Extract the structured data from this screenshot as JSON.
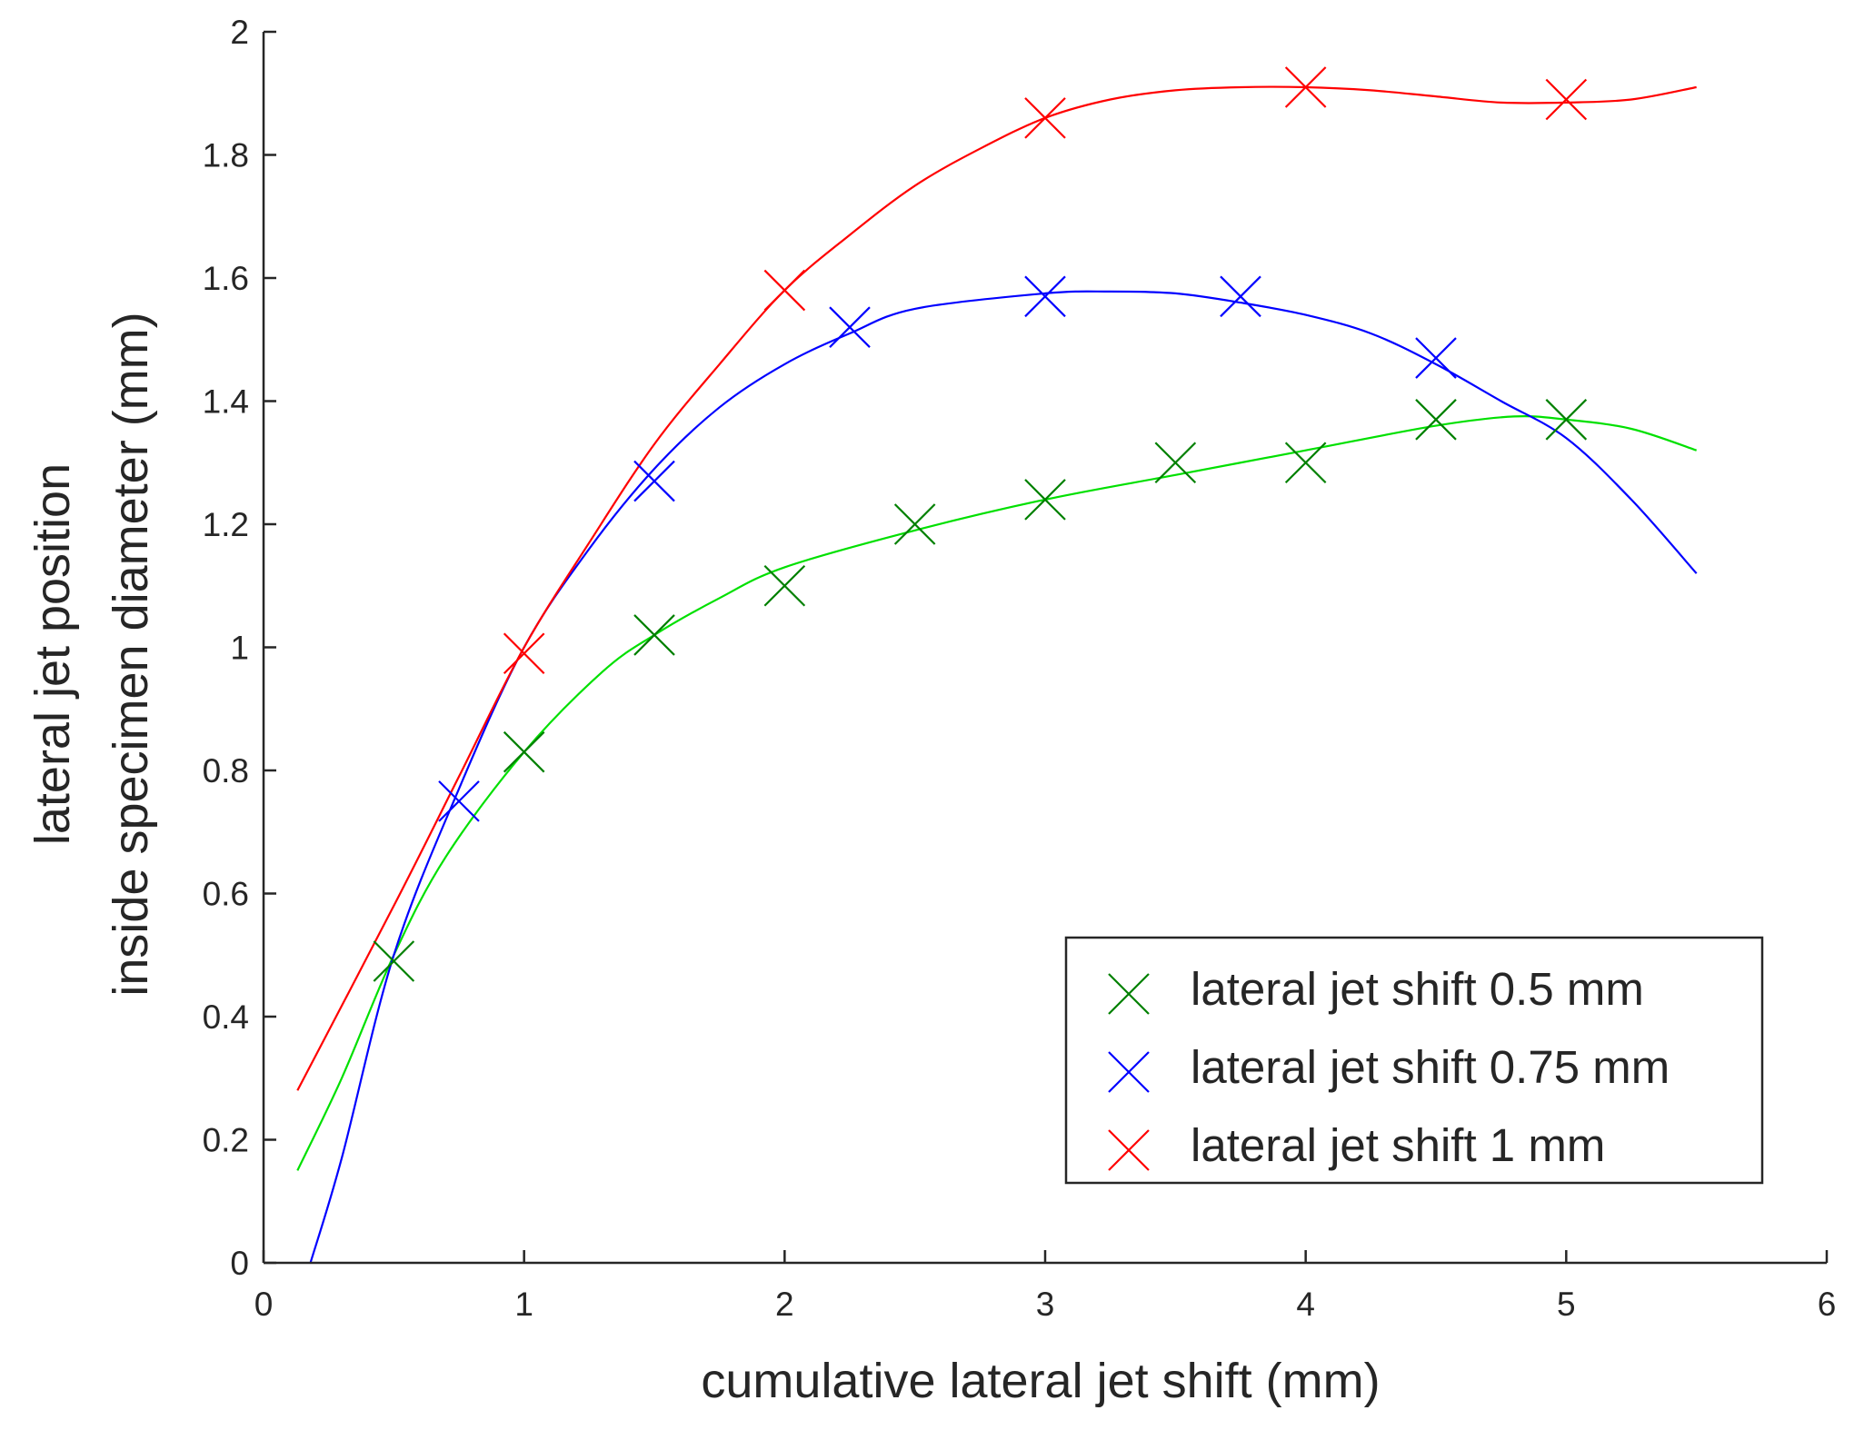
{
  "chart_data": {
    "type": "line",
    "xlabel": "cumulative lateral jet shift (mm)",
    "ylabel_lines": [
      "lateral jet position",
      "inside specimen diameter (mm)"
    ],
    "xlim": [
      0,
      6
    ],
    "ylim": [
      0,
      2
    ],
    "xticks": [
      0,
      1,
      2,
      3,
      4,
      5,
      6
    ],
    "yticks": [
      0,
      0.2,
      0.4,
      0.6,
      0.8,
      1,
      1.2,
      1.4,
      1.6,
      1.8,
      2
    ],
    "xtick_labels": [
      "0",
      "1",
      "2",
      "3",
      "4",
      "5",
      "6"
    ],
    "ytick_labels": [
      "0",
      "0.2",
      "0.4",
      "0.6",
      "0.8",
      "1",
      "1.2",
      "1.4",
      "1.6",
      "1.8",
      "2"
    ],
    "grid": false,
    "legend_position": "bottom-right",
    "series": [
      {
        "name": "lateral jet shift 0.5 mm",
        "color": "#008000",
        "fit_color": "#00e000",
        "marker": "x",
        "points": [
          [
            0.5,
            0.49
          ],
          [
            1.0,
            0.83
          ],
          [
            1.5,
            1.02
          ],
          [
            2.0,
            1.1
          ],
          [
            2.5,
            1.2
          ],
          [
            3.0,
            1.24
          ],
          [
            3.5,
            1.3
          ],
          [
            4.0,
            1.3
          ],
          [
            4.5,
            1.37
          ],
          [
            5.0,
            1.37
          ]
        ],
        "fit": [
          [
            0.13,
            0.15
          ],
          [
            0.3,
            0.3
          ],
          [
            0.5,
            0.5
          ],
          [
            0.7,
            0.66
          ],
          [
            1.0,
            0.83
          ],
          [
            1.3,
            0.96
          ],
          [
            1.5,
            1.02
          ],
          [
            1.75,
            1.08
          ],
          [
            2.0,
            1.13
          ],
          [
            2.5,
            1.19
          ],
          [
            3.0,
            1.24
          ],
          [
            3.5,
            1.28
          ],
          [
            4.0,
            1.32
          ],
          [
            4.5,
            1.36
          ],
          [
            4.8,
            1.375
          ],
          [
            5.0,
            1.37
          ],
          [
            5.25,
            1.355
          ],
          [
            5.5,
            1.32
          ]
        ]
      },
      {
        "name": "lateral jet shift 0.75 mm",
        "color": "#0000ff",
        "fit_color": "#0000ff",
        "marker": "x",
        "points": [
          [
            0.75,
            0.75
          ],
          [
            1.5,
            1.27
          ],
          [
            2.25,
            1.52
          ],
          [
            3.0,
            1.57
          ],
          [
            3.75,
            1.57
          ],
          [
            4.5,
            1.47
          ]
        ],
        "fit": [
          [
            0.18,
            0.0
          ],
          [
            0.3,
            0.17
          ],
          [
            0.5,
            0.5
          ],
          [
            0.75,
            0.77
          ],
          [
            1.0,
            1.0
          ],
          [
            1.25,
            1.16
          ],
          [
            1.5,
            1.29
          ],
          [
            1.75,
            1.39
          ],
          [
            2.0,
            1.46
          ],
          [
            2.25,
            1.51
          ],
          [
            2.5,
            1.55
          ],
          [
            3.0,
            1.575
          ],
          [
            3.25,
            1.578
          ],
          [
            3.5,
            1.575
          ],
          [
            3.75,
            1.56
          ],
          [
            4.0,
            1.54
          ],
          [
            4.25,
            1.51
          ],
          [
            4.5,
            1.46
          ],
          [
            4.75,
            1.4
          ],
          [
            5.0,
            1.34
          ],
          [
            5.25,
            1.24
          ],
          [
            5.5,
            1.12
          ]
        ]
      },
      {
        "name": "lateral jet shift 1 mm",
        "color": "#ff0000",
        "fit_color": "#ff0000",
        "marker": "x",
        "points": [
          [
            1.0,
            0.99
          ],
          [
            2.0,
            1.58
          ],
          [
            3.0,
            1.86
          ],
          [
            4.0,
            1.91
          ],
          [
            5.0,
            1.89
          ]
        ],
        "fit": [
          [
            0.13,
            0.28
          ],
          [
            0.5,
            0.58
          ],
          [
            0.75,
            0.79
          ],
          [
            1.0,
            1.0
          ],
          [
            1.25,
            1.17
          ],
          [
            1.5,
            1.33
          ],
          [
            1.75,
            1.46
          ],
          [
            2.0,
            1.58
          ],
          [
            2.25,
            1.67
          ],
          [
            2.5,
            1.75
          ],
          [
            2.75,
            1.81
          ],
          [
            3.0,
            1.86
          ],
          [
            3.25,
            1.89
          ],
          [
            3.5,
            1.905
          ],
          [
            3.75,
            1.91
          ],
          [
            4.0,
            1.91
          ],
          [
            4.25,
            1.905
          ],
          [
            4.5,
            1.895
          ],
          [
            4.75,
            1.885
          ],
          [
            5.0,
            1.885
          ],
          [
            5.25,
            1.89
          ],
          [
            5.5,
            1.91
          ]
        ]
      }
    ]
  }
}
